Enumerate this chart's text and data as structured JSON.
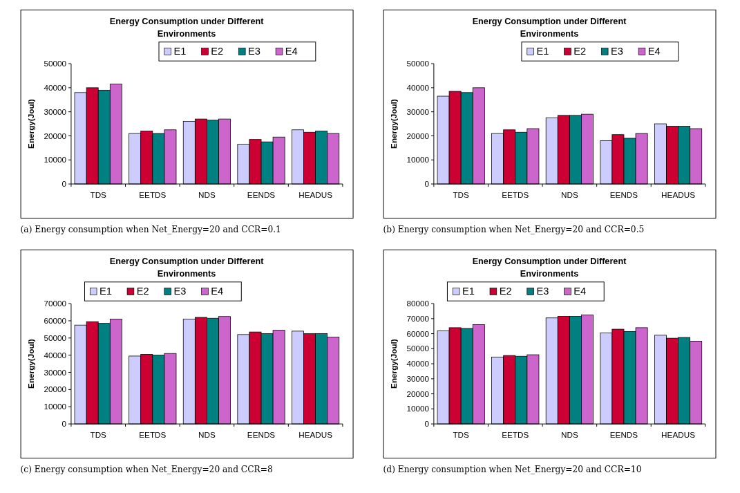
{
  "chart_data": [
    {
      "type": "bar",
      "title": "Energy Consumption under Different Environments",
      "ylabel": "Energy(Joul)",
      "categories": [
        "TDS",
        "EETDS",
        "NDS",
        "EENDS",
        "HEADUS"
      ],
      "ylim": [
        0,
        50000
      ],
      "yticks": [
        0,
        10000,
        20000,
        30000,
        40000,
        50000
      ],
      "legend": "top right",
      "grid": false,
      "annotations": [
        "(a) Energy consumption when Net_Energy=20 and CCR=0.1"
      ],
      "series": [
        {
          "name": "E1",
          "color": "#ccccff",
          "values": [
            38000,
            21000,
            26000,
            16500,
            22500
          ]
        },
        {
          "name": "E2",
          "color": "#cc0033",
          "values": [
            40000,
            22000,
            27000,
            18500,
            21500
          ]
        },
        {
          "name": "E3",
          "color": "#008080",
          "values": [
            39000,
            21000,
            26500,
            17500,
            22000
          ]
        },
        {
          "name": "E4",
          "color": "#cc66cc",
          "values": [
            41500,
            22500,
            27000,
            19500,
            21000
          ]
        }
      ]
    },
    {
      "type": "bar",
      "title": "Energy Consumption under Different Environments",
      "ylabel": "Energy(Joul)",
      "categories": [
        "TDS",
        "EETDS",
        "NDS",
        "EENDS",
        "HEADUS"
      ],
      "ylim": [
        0,
        50000
      ],
      "yticks": [
        0,
        10000,
        20000,
        30000,
        40000,
        50000
      ],
      "legend": "top right",
      "grid": false,
      "annotations": [
        "(b) Energy consumption when Net_Energy=20 and CCR=0.5"
      ],
      "series": [
        {
          "name": "E1",
          "color": "#ccccff",
          "values": [
            36500,
            21000,
            27500,
            18000,
            25000
          ]
        },
        {
          "name": "E2",
          "color": "#cc0033",
          "values": [
            38500,
            22500,
            28500,
            20500,
            24000
          ]
        },
        {
          "name": "E3",
          "color": "#008080",
          "values": [
            38000,
            21500,
            28500,
            19000,
            24000
          ]
        },
        {
          "name": "E4",
          "color": "#cc66cc",
          "values": [
            40000,
            23000,
            29000,
            21000,
            23000
          ]
        }
      ]
    },
    {
      "type": "bar",
      "title": "Energy Consumption under Different Environments",
      "ylabel": "Energy(Joul)",
      "categories": [
        "TDS",
        "EETDS",
        "NDS",
        "EENDS",
        "HEADUS"
      ],
      "ylim": [
        0,
        70000
      ],
      "yticks": [
        0,
        10000,
        20000,
        30000,
        40000,
        50000,
        60000,
        70000
      ],
      "legend": "top left",
      "grid": false,
      "annotations": [
        "(c) Energy consumption when Net_Energy=20 and CCR=8"
      ],
      "series": [
        {
          "name": "E1",
          "color": "#ccccff",
          "values": [
            57500,
            39500,
            61000,
            52000,
            54000
          ]
        },
        {
          "name": "E2",
          "color": "#cc0033",
          "values": [
            59500,
            40500,
            62000,
            53500,
            52500
          ]
        },
        {
          "name": "E3",
          "color": "#008080",
          "values": [
            58500,
            40000,
            61500,
            52500,
            52500
          ]
        },
        {
          "name": "E4",
          "color": "#cc66cc",
          "values": [
            61000,
            41000,
            62500,
            54500,
            50500
          ]
        }
      ]
    },
    {
      "type": "bar",
      "title": "Energy Consumption under Different Environments",
      "ylabel": "Energy(Joul)",
      "categories": [
        "TDS",
        "EETDS",
        "NDS",
        "EENDS",
        "HEADUS"
      ],
      "ylim": [
        0,
        80000
      ],
      "yticks": [
        0,
        10000,
        20000,
        30000,
        40000,
        50000,
        60000,
        70000,
        80000
      ],
      "legend": "top left",
      "grid": false,
      "annotations": [
        "(d) Energy consumption when Net_Energy=20 and CCR=10"
      ],
      "series": [
        {
          "name": "E1",
          "color": "#ccccff",
          "values": [
            62000,
            44500,
            70500,
            60500,
            59000
          ]
        },
        {
          "name": "E2",
          "color": "#cc0033",
          "values": [
            64000,
            45500,
            71500,
            63000,
            57000
          ]
        },
        {
          "name": "E3",
          "color": "#008080",
          "values": [
            63500,
            45000,
            71500,
            61500,
            57500
          ]
        },
        {
          "name": "E4",
          "color": "#cc66cc",
          "values": [
            66000,
            46000,
            72500,
            64000,
            55000
          ]
        }
      ]
    }
  ]
}
